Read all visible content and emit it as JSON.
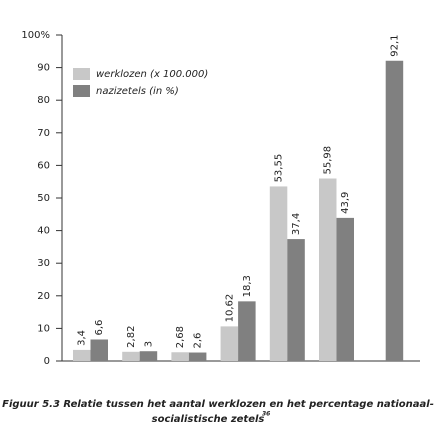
{
  "chart_data": {
    "type": "bar",
    "categories": [
      null,
      null,
      null,
      null,
      null,
      null,
      null
    ],
    "series": [
      {
        "name": "werklozen (x 100.000)",
        "color": "#c8c8c8",
        "values": [
          3.4,
          2.82,
          2.68,
          10.62,
          53.55,
          55.98,
          null
        ],
        "value_labels": [
          "3,4",
          "2,82",
          "2,68",
          "10,62",
          "53,55",
          "55,98",
          null
        ]
      },
      {
        "name": "nazizetels (in %)",
        "color": "#808080",
        "values": [
          6.6,
          3,
          2.6,
          18.3,
          37.4,
          43.9,
          92.1
        ],
        "value_labels": [
          "6,6",
          "3",
          "2,6",
          "18,3",
          "37,4",
          "43,9",
          "92,1"
        ]
      }
    ],
    "ylim": [
      0,
      100
    ],
    "yticks": [
      0,
      10,
      20,
      30,
      40,
      50,
      60,
      70,
      80,
      90,
      {
        "value": 100,
        "label": "100%"
      }
    ],
    "legend": "upper-left",
    "caption": [
      "Figuur 5.3 Relatie tussen het aantal werklozen en het percentage nationaal-",
      "socialistische zetels"
    ],
    "caption_footnote": "36"
  }
}
